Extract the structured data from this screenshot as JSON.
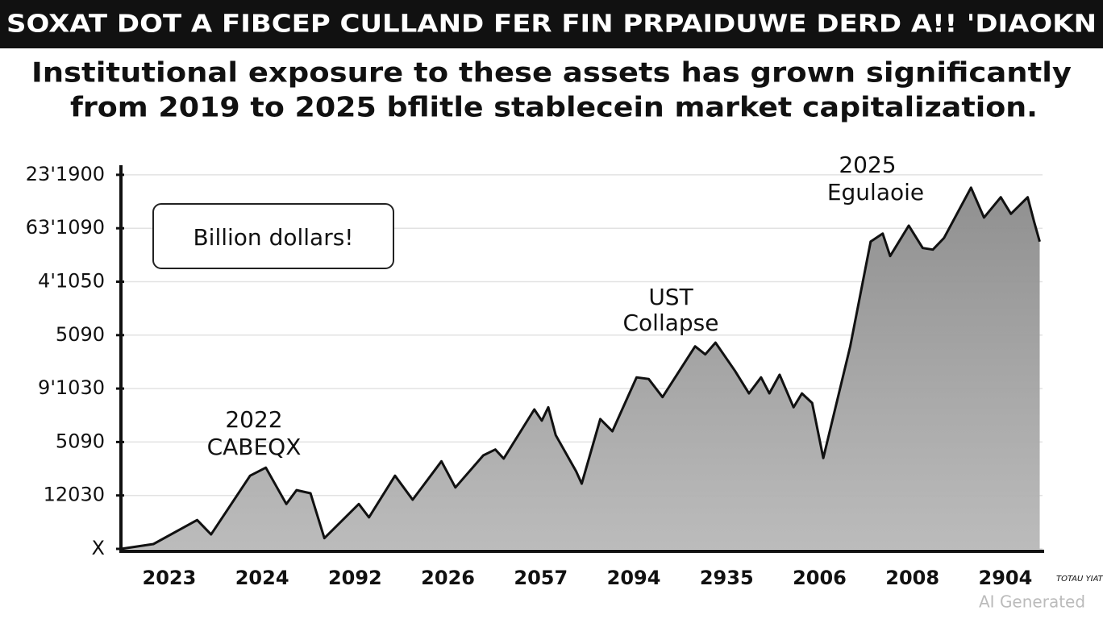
{
  "chart_data": {
    "type": "area",
    "title": "SOXAT DOT A FIBCEP CULLAND FER FIN PRPAIDUWE DERD A!! 'DIAOKN",
    "subtitle": [
      "Institutional exposure to these assets has grown significantly",
      "from 2019 to 2025  bflitle stablecein market capitalization."
    ],
    "annotations": [
      "Billion dollars!",
      "2022",
      "CABEQX",
      "UST",
      "Collapse",
      "2025",
      "Egulaoie"
    ],
    "watermark": "AI Generated",
    "corner_note": "TOTAU YIATE",
    "x": [
      -0.52,
      -0.17,
      0.3,
      0.45,
      0.87,
      1.04,
      1.26,
      1.37,
      1.52,
      1.67,
      2.04,
      2.15,
      2.43,
      2.62,
      2.93,
      3.08,
      3.38,
      3.51,
      3.6,
      3.93,
      4.01,
      4.08,
      4.16,
      4.38,
      4.44,
      4.64,
      4.77,
      5.03,
      5.16,
      5.31,
      5.66,
      5.77,
      5.88,
      6.09,
      6.24,
      6.37,
      6.46,
      6.57,
      6.72,
      6.81,
      6.92,
      7.04,
      7.33,
      7.55,
      7.68,
      7.76,
      7.96,
      8.11,
      8.22,
      8.34,
      8.63,
      8.77,
      8.95,
      9.06,
      9.24,
      9.31,
      9.37
    ],
    "values": [
      0,
      0.09,
      0.54,
      0.27,
      1.37,
      1.52,
      0.84,
      1.1,
      1.04,
      0.2,
      0.84,
      0.59,
      1.37,
      0.92,
      1.64,
      1.15,
      1.75,
      1.86,
      1.69,
      2.61,
      2.4,
      2.65,
      2.13,
      1.45,
      1.22,
      2.43,
      2.2,
      3.21,
      3.18,
      2.84,
      3.79,
      3.64,
      3.86,
      3.33,
      2.91,
      3.21,
      2.91,
      3.26,
      2.65,
      2.91,
      2.73,
      1.7,
      3.79,
      5.75,
      5.9,
      5.48,
      6.05,
      5.63,
      5.6,
      5.82,
      6.76,
      6.2,
      6.58,
      6.27,
      6.58,
      6.12,
      5.75
    ],
    "color": "#8a8a8a",
    "xlim": [
      -0.52,
      9.4
    ],
    "xticks": [
      {
        "value": 0,
        "label": "2023"
      },
      {
        "value": 1,
        "label": "2024"
      },
      {
        "value": 2,
        "label": "2092"
      },
      {
        "value": 3,
        "label": "2026"
      },
      {
        "value": 4,
        "label": "2057"
      },
      {
        "value": 5,
        "label": "2094"
      },
      {
        "value": 6,
        "label": "2935"
      },
      {
        "value": 7,
        "label": "2006"
      },
      {
        "value": 8,
        "label": "2008"
      },
      {
        "value": 9,
        "label": "2904"
      }
    ],
    "ylim": [
      0,
      7.2
    ],
    "yticks": [
      {
        "value": 0,
        "label": "X"
      },
      {
        "value": 1,
        "label": "12030"
      },
      {
        "value": 2,
        "label": "5090"
      },
      {
        "value": 3,
        "label": "9'1030"
      },
      {
        "value": 4,
        "label": "5090"
      },
      {
        "value": 5,
        "label": "4'1050"
      },
      {
        "value": 6,
        "label": "63'1090"
      },
      {
        "value": 7,
        "label": "23'1900"
      }
    ],
    "grid": true
  }
}
